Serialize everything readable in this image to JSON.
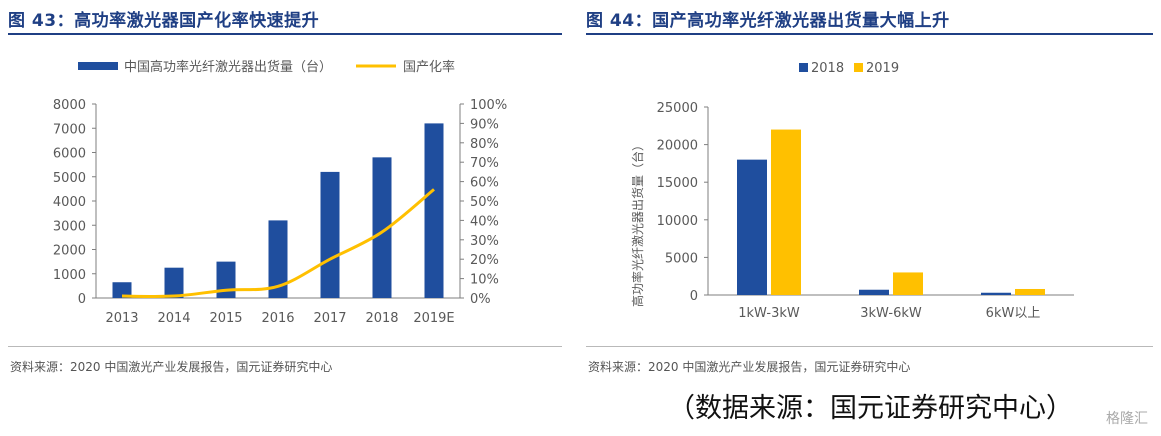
{
  "left_panel": {
    "title": "图 43：高功率激光器国产化率快速提升",
    "source": "资料来源：2020 中国激光产业发展报告，国元证券研究中心"
  },
  "right_panel": {
    "title": "图 44：国产高功率光纤激光器出货量大幅上升",
    "source": "资料来源：2020 中国激光产业发展报告，国元证券研究中心"
  },
  "footnote": "（数据来源：国元证券研究中心）",
  "watermark": "格隆汇",
  "chart_data": [
    {
      "type": "bar",
      "categories": [
        "2013",
        "2014",
        "2015",
        "2016",
        "2017",
        "2018",
        "2019E"
      ],
      "series": [
        {
          "name": "中国高功率光纤激光器出货量（台）",
          "type": "bar",
          "axis": "left",
          "color": "#1f4e9e",
          "values": [
            650,
            1250,
            1500,
            3200,
            5200,
            5800,
            7200
          ]
        },
        {
          "name": "国产化率",
          "type": "line",
          "axis": "right",
          "color": "#ffc000",
          "values": [
            0.01,
            0.01,
            0.04,
            0.06,
            0.2,
            0.34,
            0.56
          ]
        }
      ],
      "y_left": {
        "min": 0,
        "max": 8000,
        "ticks": [
          "0",
          "1000",
          "2000",
          "3000",
          "4000",
          "5000",
          "6000",
          "7000",
          "8000"
        ]
      },
      "y_right": {
        "min": 0,
        "max": 1.0,
        "ticks": [
          "0%",
          "10%",
          "20%",
          "30%",
          "40%",
          "50%",
          "60%",
          "70%",
          "80%",
          "90%",
          "100%"
        ]
      },
      "legend_position": "top",
      "grid": false
    },
    {
      "type": "bar",
      "categories": [
        "1kW-3kW",
        "3kW-6kW",
        "6kW以上"
      ],
      "series": [
        {
          "name": "2018",
          "color": "#1f4e9e",
          "values": [
            18000,
            700,
            300
          ]
        },
        {
          "name": "2019",
          "color": "#ffc000",
          "values": [
            22000,
            3000,
            800
          ]
        }
      ],
      "ylabel": "高功率光纤激光器出货量（台）",
      "ylim": [
        0,
        25000
      ],
      "y_ticks": [
        "0",
        "5000",
        "10000",
        "15000",
        "20000",
        "25000"
      ],
      "legend_position": "top",
      "grid": false
    }
  ]
}
